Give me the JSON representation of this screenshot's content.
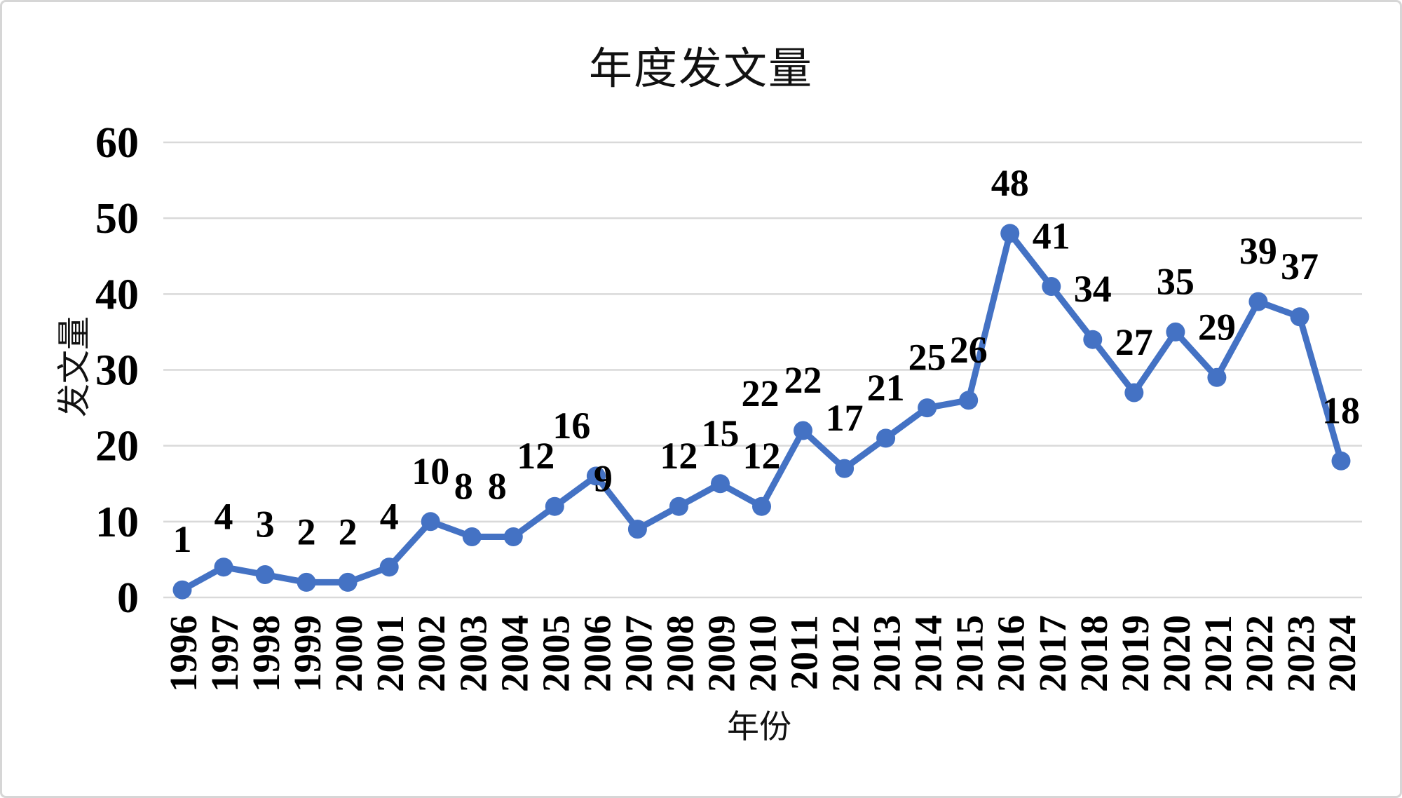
{
  "chart_data": {
    "type": "line",
    "title": "年度发文量",
    "xlabel": "年份",
    "ylabel": "发文量",
    "categories": [
      "1996",
      "1997",
      "1998",
      "1999",
      "2000",
      "2001",
      "2002",
      "2003",
      "2004",
      "2005",
      "2006",
      "2007",
      "2008",
      "2009",
      "2010",
      "2011",
      "2012",
      "2013",
      "2014",
      "2015",
      "2016",
      "2017",
      "2018",
      "2019",
      "2020",
      "2021",
      "2022",
      "2023",
      "2024"
    ],
    "values": [
      1,
      4,
      3,
      2,
      2,
      4,
      10,
      8,
      8,
      12,
      16,
      9,
      12,
      15,
      12,
      22,
      17,
      21,
      25,
      26,
      48,
      41,
      34,
      27,
      35,
      29,
      39,
      37,
      18
    ],
    "data_labels_visible": true,
    "label_dx": [
      0,
      0,
      0,
      0,
      0,
      0,
      0,
      -12,
      -23,
      -27,
      -35,
      -49,
      0,
      0,
      0,
      0,
      0,
      0,
      0,
      0,
      0,
      0,
      0,
      0,
      0,
      0,
      0,
      0,
      0
    ],
    "extra_labels": [
      {
        "text": "22",
        "index": 14,
        "dx": -2,
        "dy": -143
      }
    ],
    "yticks": [
      0,
      10,
      20,
      30,
      40,
      50,
      60
    ],
    "ylim": [
      0,
      60
    ],
    "grid": "horizontal",
    "legend": "none",
    "marker": "circle",
    "colors": {
      "series": "#4472C4",
      "gridline": "#D9D9D9",
      "text": "#000000",
      "frame_border": "#D6D6D6",
      "background": "#FFFFFF"
    }
  }
}
